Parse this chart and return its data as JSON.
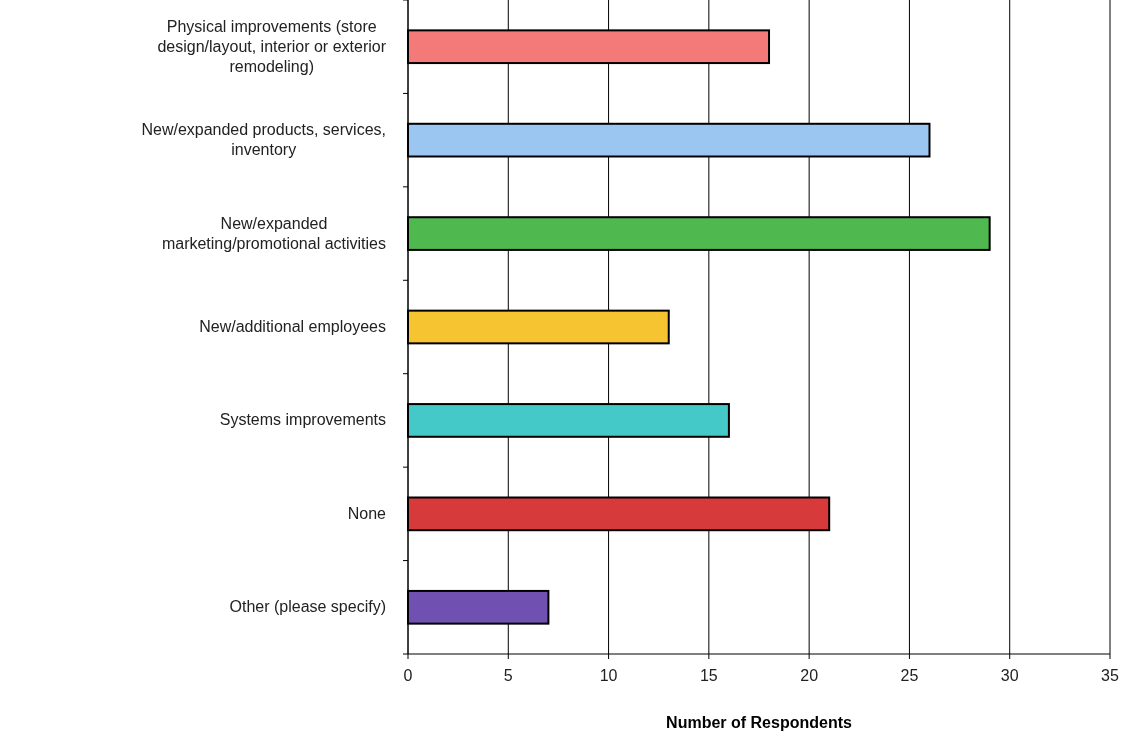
{
  "chart_data": {
    "type": "bar",
    "orientation": "horizontal",
    "xlabel": "Number of Respondents",
    "categories": [
      "Physical improvements (store design/layout, interior or exterior remodeling)",
      "New/expanded products, services, inventory",
      "New/expanded marketing/promotional activities",
      "New/additional employees",
      "Systems improvements",
      "None",
      "Other (please specify)"
    ],
    "values": [
      18,
      26,
      29,
      13,
      16,
      21,
      7
    ],
    "colors": [
      "#f47a7a",
      "#9cc6f2",
      "#4fb84f",
      "#f5c430",
      "#45c8c8",
      "#d63a3a",
      "#7050b0"
    ],
    "xlim": [
      0,
      35
    ],
    "xticks": [
      0,
      5,
      10,
      15,
      20,
      25,
      30,
      35
    ],
    "grid": "x"
  }
}
